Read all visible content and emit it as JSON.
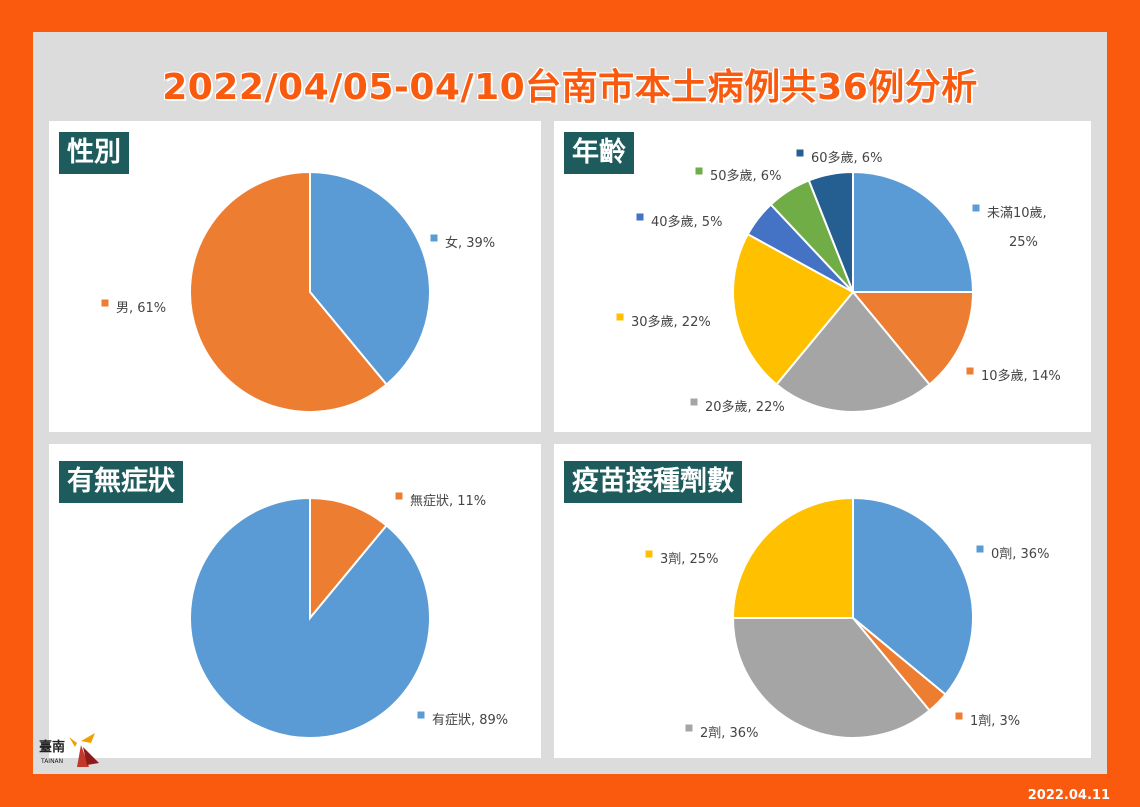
{
  "title": "2022/04/05-04/10台南市本土病例共36例分析",
  "date": "2022.04.11",
  "logo": {
    "text": "臺南",
    "subtext": "TAINAN"
  },
  "colors": {
    "frame": "#f95a0e",
    "panel_title_bg": "#1d5b5c"
  },
  "chart_data": [
    {
      "type": "pie",
      "title": "性別",
      "slices": [
        {
          "label": "女",
          "value": 39,
          "display": "女, 39%",
          "color": "#5b9bd5"
        },
        {
          "label": "男",
          "value": 61,
          "display": "男, 61%",
          "color": "#ed7d31"
        }
      ]
    },
    {
      "type": "pie",
      "title": "年齡",
      "slices": [
        {
          "label": "未滿10歲",
          "value": 25,
          "display": [
            "未滿10歲,",
            "25%"
          ],
          "color": "#5b9bd5"
        },
        {
          "label": "10多歲",
          "value": 14,
          "display": "10多歲, 14%",
          "color": "#ed7d31"
        },
        {
          "label": "20多歲",
          "value": 22,
          "display": "20多歲, 22%",
          "color": "#a5a5a5"
        },
        {
          "label": "30多歲",
          "value": 22,
          "display": "30多歲, 22%",
          "color": "#ffc000"
        },
        {
          "label": "40多歲",
          "value": 5,
          "display": "40多歲, 5%",
          "color": "#4472c4"
        },
        {
          "label": "50多歲",
          "value": 6,
          "display": "50多歲, 6%",
          "color": "#70ad47"
        },
        {
          "label": "60多歲",
          "value": 6,
          "display": "60多歲, 6%",
          "color": "#255e91"
        }
      ]
    },
    {
      "type": "pie",
      "title": "有無症狀",
      "slices": [
        {
          "label": "無症狀",
          "value": 11,
          "display": "無症狀, 11%",
          "color": "#ed7d31"
        },
        {
          "label": "有症狀",
          "value": 89,
          "display": "有症狀, 89%",
          "color": "#5b9bd5"
        }
      ]
    },
    {
      "type": "pie",
      "title": "疫苗接種劑數",
      "slices": [
        {
          "label": "0劑",
          "value": 36,
          "display": "0劑, 36%",
          "color": "#5b9bd5"
        },
        {
          "label": "1劑",
          "value": 3,
          "display": "1劑, 3%",
          "color": "#ed7d31"
        },
        {
          "label": "2劑",
          "value": 36,
          "display": "2劑, 36%",
          "color": "#a5a5a5"
        },
        {
          "label": "3劑",
          "value": 25,
          "display": "3劑, 25%",
          "color": "#ffc000"
        }
      ]
    }
  ]
}
